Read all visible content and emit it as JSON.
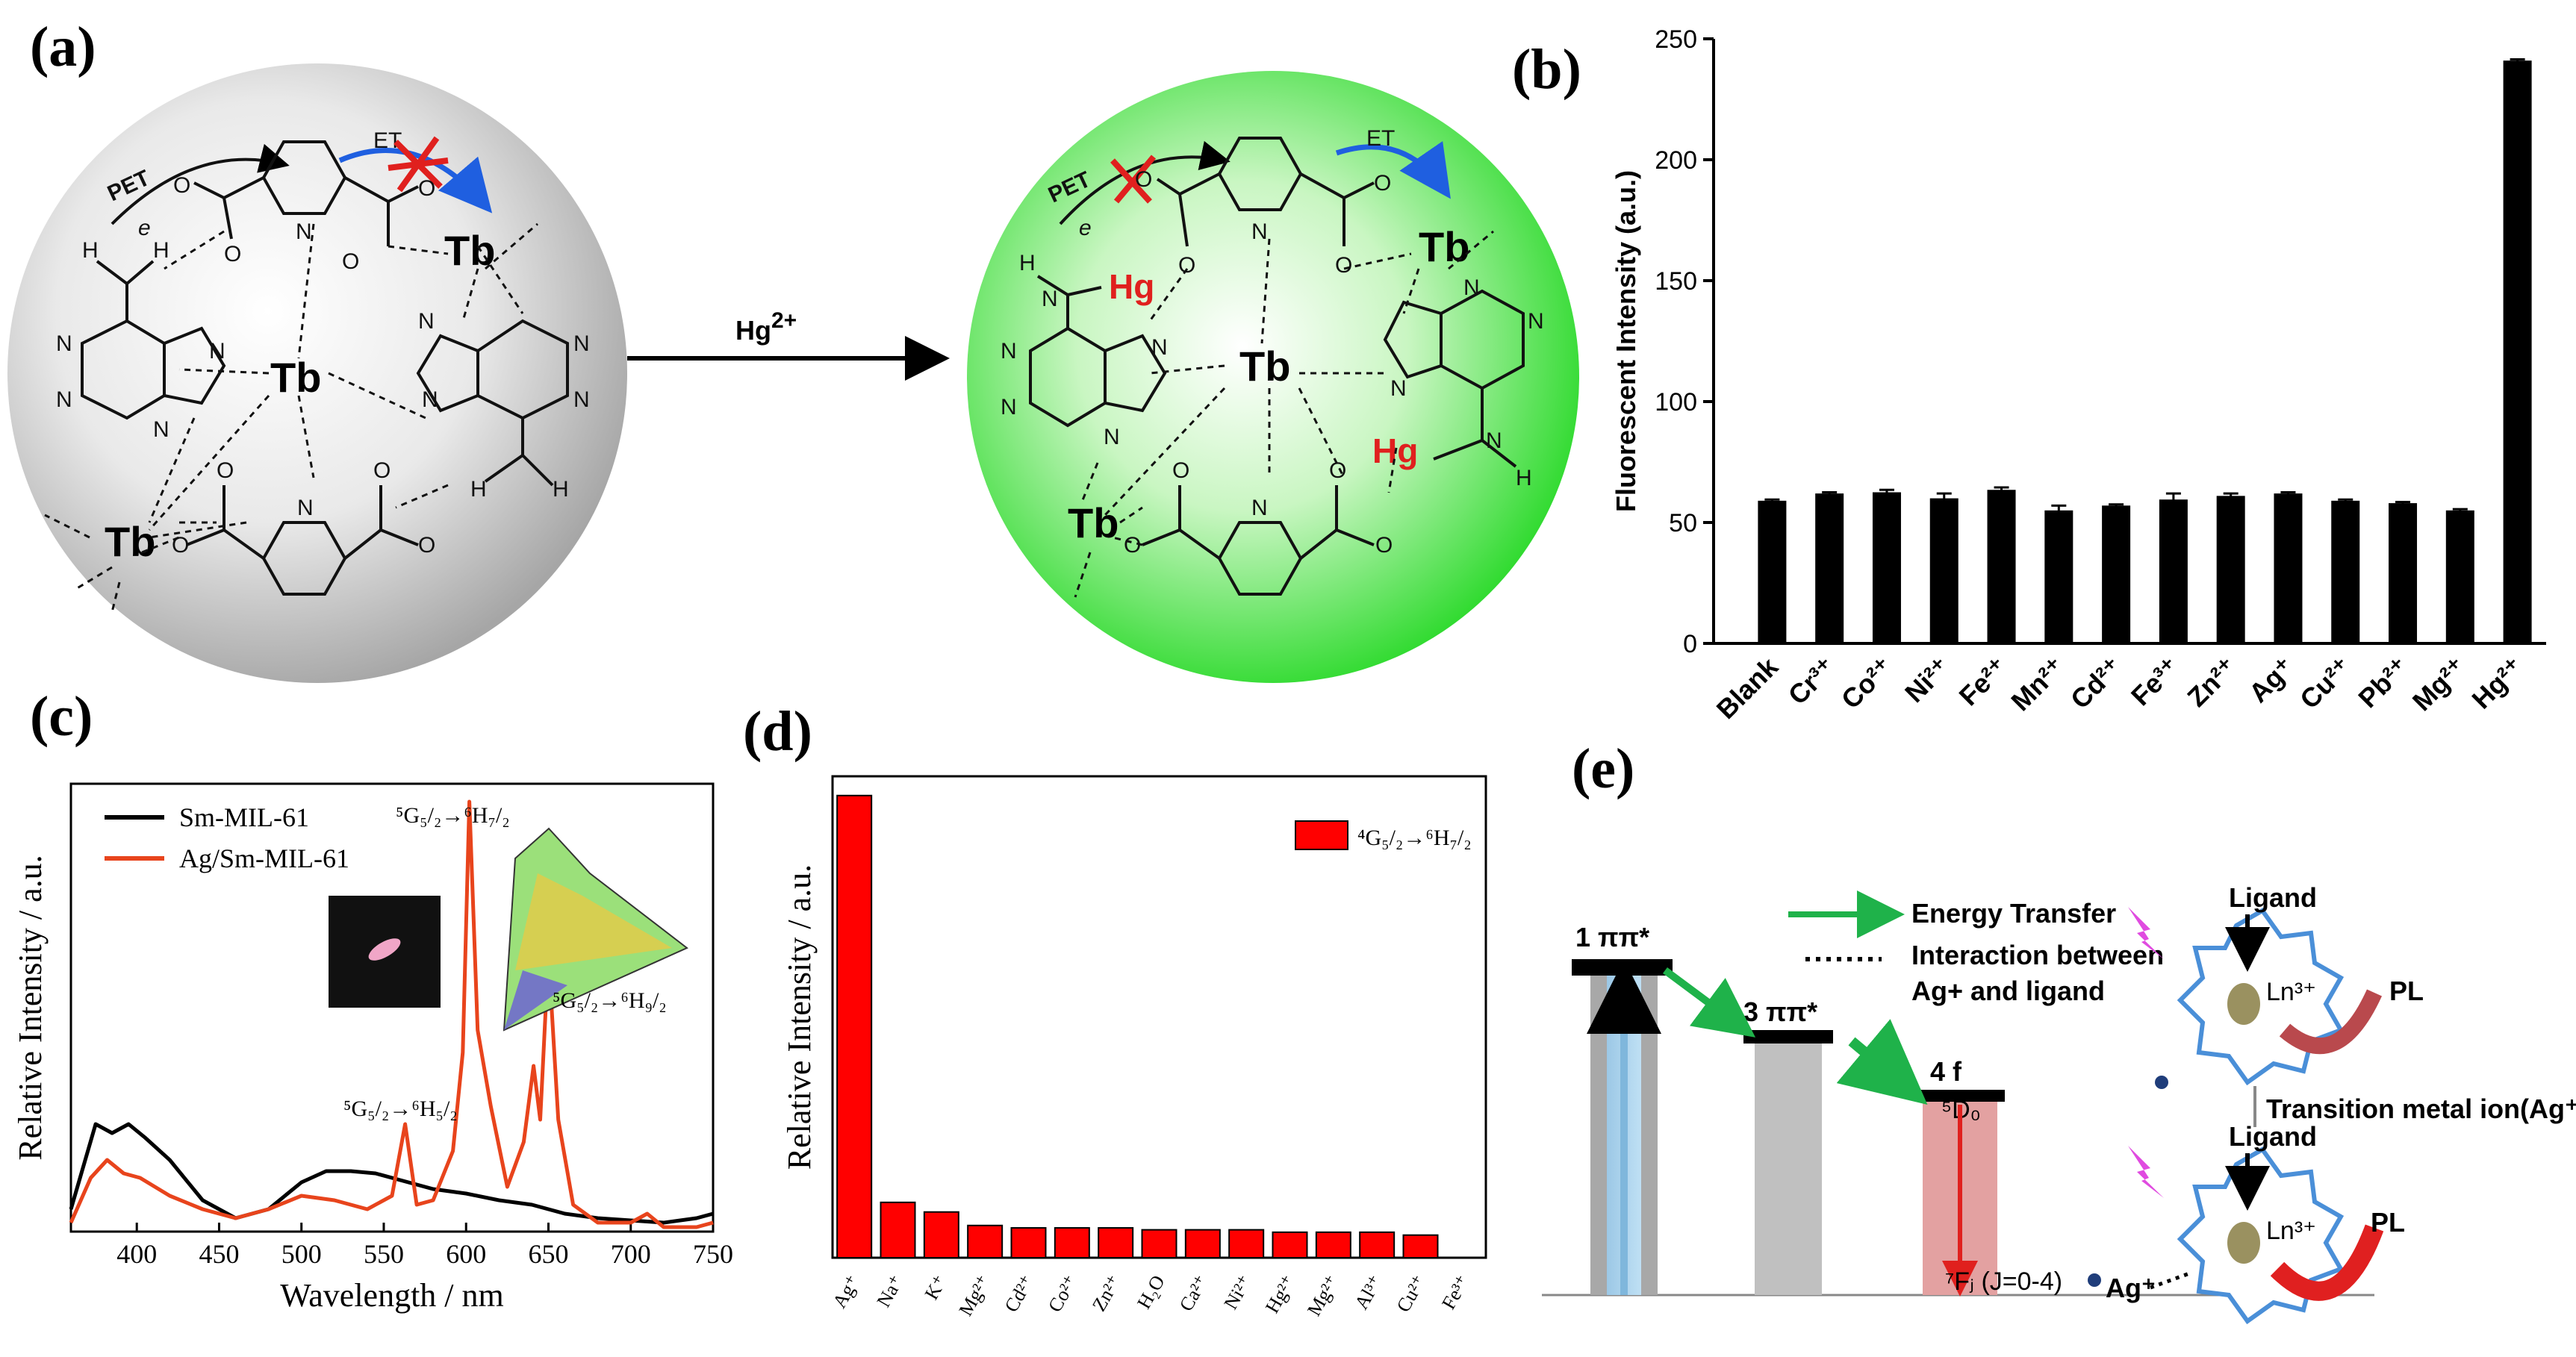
{
  "colors": {
    "hg_red": "#e0201e",
    "sphere_green": "#22d822",
    "bar_red": "#ff0000",
    "ag_line": "#e8441c",
    "et_blue": "#1f5fe0",
    "transfer_green": "#1fb24a"
  },
  "panel_a": {
    "label": "(a)",
    "left": {
      "pet": "PET",
      "e": "e",
      "et": "ET",
      "tb": "Tb",
      "n": "N",
      "h": "H",
      "o": "O"
    },
    "arrow_label": "Hg",
    "arrow_sup": "2+",
    "right": {
      "pet": "PET",
      "e": "e",
      "et": "ET",
      "tb": "Tb",
      "hg": "Hg",
      "n": "N",
      "h": "H",
      "o": "O"
    }
  },
  "panel_b": {
    "label": "(b)"
  },
  "panel_c": {
    "label": "(c)",
    "legend": [
      "Sm-MIL-61",
      "Ag/Sm-MIL-61"
    ],
    "ann_main": "⁵G₅/₂→⁶H₇/₂",
    "ann_small": "⁵G₅/₂→⁶H₅/₂",
    "ann_inset": "⁵G₅/₂→⁶H₉/₂"
  },
  "panel_d": {
    "label": "(d)",
    "legend": "⁴G₅/₂→⁶H₇/₂"
  },
  "panel_e": {
    "label": "(e)",
    "level1": "1 ππ*",
    "level3": "3 ππ*",
    "level4": "4 f",
    "d0": "⁵D₀",
    "f_j": "⁷Fⱼ (J=0-4)",
    "legend_energy": "Energy Transfer",
    "legend_inter1": "Interaction between",
    "legend_inter2": "Ag+ and ligand",
    "ligand": "Ligand",
    "ln": "Ln³⁺",
    "pl": "PL",
    "transition": "Transition metal ion(Ag⁺)",
    "ag": "Ag⁺"
  },
  "chart_data": [
    {
      "type": "bar",
      "panel": "b",
      "title": "",
      "xlabel": "",
      "ylabel": "Fluorescent Intensity (a.u.)",
      "ylim": [
        0,
        250
      ],
      "yticks": [
        0,
        50,
        100,
        150,
        200,
        250
      ],
      "categories": [
        "Blank",
        "Cr³⁺",
        "Co²⁺",
        "Ni²⁺",
        "Fe²⁺",
        "Mn²⁺",
        "Cd²⁺",
        "Fe³⁺",
        "Zn²⁺",
        "Ag⁺",
        "Cu²⁺",
        "Pb²⁺",
        "Mg²⁺",
        "Hg²⁺"
      ],
      "values": [
        59,
        62,
        62.5,
        60,
        63.5,
        55,
        57,
        59.5,
        61,
        62,
        59,
        58,
        55,
        241
      ],
      "errors": [
        0.5,
        0.5,
        1,
        2,
        1,
        2,
        0.5,
        2.5,
        1,
        0.5,
        0.5,
        0.5,
        0.5,
        0.5
      ]
    },
    {
      "type": "line",
      "panel": "c",
      "xlabel": "Wavelength / nm",
      "ylabel": "Relative Intensity / a.u.",
      "xlim": [
        360,
        750
      ],
      "ylim": [
        0,
        1
      ],
      "xticks": [
        400,
        450,
        500,
        550,
        600,
        650,
        700,
        750
      ],
      "series": [
        {
          "name": "Sm-MIL-61",
          "x": [
            360,
            375,
            385,
            395,
            405,
            420,
            440,
            460,
            480,
            500,
            515,
            530,
            545,
            560,
            580,
            600,
            620,
            640,
            660,
            680,
            700,
            720,
            740,
            750
          ],
          "y": [
            0.05,
            0.24,
            0.22,
            0.24,
            0.21,
            0.16,
            0.07,
            0.03,
            0.05,
            0.11,
            0.135,
            0.135,
            0.13,
            0.115,
            0.095,
            0.085,
            0.07,
            0.06,
            0.04,
            0.03,
            0.025,
            0.02,
            0.03,
            0.04
          ]
        },
        {
          "name": "Ag/Sm-MIL-61",
          "x": [
            360,
            372,
            382,
            392,
            402,
            420,
            440,
            460,
            480,
            500,
            520,
            540,
            555,
            563,
            570,
            580,
            592,
            598,
            602,
            607,
            615,
            625,
            635,
            641,
            645,
            650,
            656,
            665,
            680,
            700,
            710,
            720,
            740,
            750
          ],
          "y": [
            0.02,
            0.12,
            0.16,
            0.13,
            0.12,
            0.08,
            0.05,
            0.03,
            0.05,
            0.08,
            0.07,
            0.05,
            0.08,
            0.24,
            0.06,
            0.07,
            0.18,
            0.4,
            0.96,
            0.45,
            0.28,
            0.1,
            0.2,
            0.37,
            0.25,
            0.62,
            0.25,
            0.06,
            0.02,
            0.02,
            0.04,
            0.01,
            0.01,
            0.02
          ]
        }
      ]
    },
    {
      "type": "bar",
      "panel": "d",
      "xlabel": "",
      "ylabel": "Relative Intensity / a.u.",
      "ylim": [
        0,
        1
      ],
      "categories": [
        "Ag⁺",
        "Na⁺",
        "K⁺",
        "Mg²⁺",
        "Cd²⁺",
        "Co²⁺",
        "Zn²⁺",
        "H₂O",
        "Ca²⁺",
        "Ni²⁺",
        "Hg²⁺",
        "Mg²⁺",
        "Al³⁺",
        "Cu²⁺",
        "Fe³⁺"
      ],
      "values": [
        0.96,
        0.115,
        0.095,
        0.067,
        0.062,
        0.062,
        0.062,
        0.058,
        0.058,
        0.058,
        0.053,
        0.053,
        0.053,
        0.047,
        0.0
      ],
      "legend": "⁴G₅/₂→⁶H₇/₂"
    }
  ]
}
